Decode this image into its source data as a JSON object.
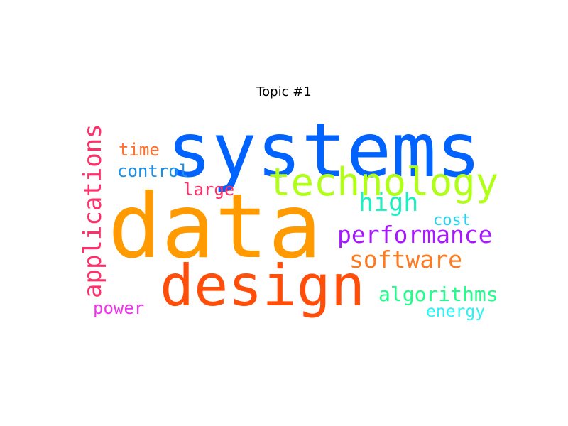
{
  "title": "Topic #1",
  "words": [
    {
      "text": "systems",
      "color": "#0062ff"
    },
    {
      "text": "data",
      "color": "#ff9a00"
    },
    {
      "text": "design",
      "color": "#ff4d0a"
    },
    {
      "text": "technology",
      "color": "#b0ff16"
    },
    {
      "text": "applications",
      "color": "#ff2f6a"
    },
    {
      "text": "performance",
      "color": "#a718ff"
    },
    {
      "text": "high",
      "color": "#1af0c0"
    },
    {
      "text": "software",
      "color": "#ff7a1f"
    },
    {
      "text": "algorithms",
      "color": "#1fff8a"
    },
    {
      "text": "control",
      "color": "#1c8fe6"
    },
    {
      "text": "time",
      "color": "#ff6f2e"
    },
    {
      "text": "large",
      "color": "#ff2f66"
    },
    {
      "text": "cost",
      "color": "#26d4f2"
    },
    {
      "text": "power",
      "color": "#f233ee"
    },
    {
      "text": "energy",
      "color": "#2bf4f6"
    }
  ]
}
